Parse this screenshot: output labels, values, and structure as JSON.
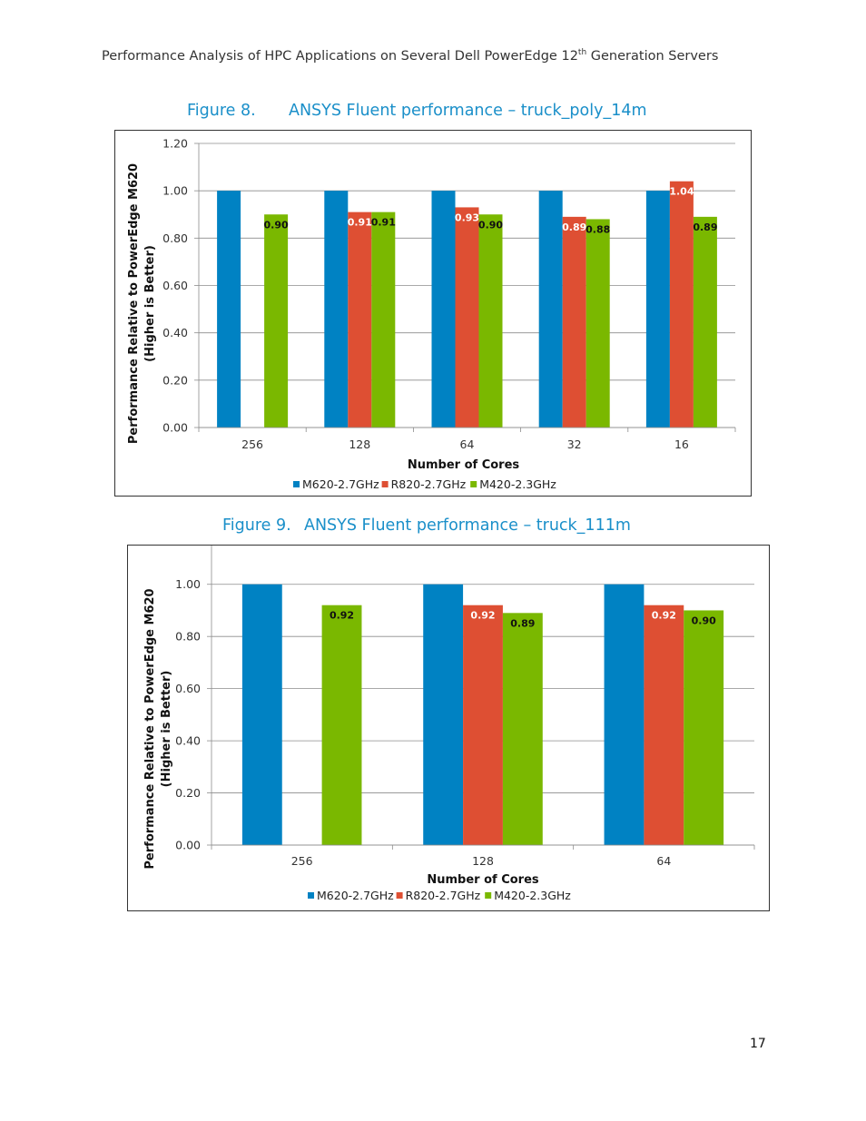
{
  "header": {
    "title_before": "Performance Analysis of HPC Applications on Several Dell PowerEdge 12",
    "title_sup": "th",
    "title_after": " Generation Servers"
  },
  "figure8": {
    "number": "Figure 8.",
    "title": "ANSYS Fluent performance – truck_poly_14m"
  },
  "figure9": {
    "number": "Figure 9.",
    "title": "ANSYS Fluent performance – truck_111m"
  },
  "page_number": "17",
  "colors": {
    "M620": "#0082c3",
    "R820": "#de4f33",
    "M420": "#7ab800",
    "caption": "#1a8fc9"
  },
  "chart_data": [
    {
      "type": "bar",
      "xlabel": "Number of Cores",
      "ylabel_line1": "Performance Relative to PowerEdge M620",
      "ylabel_line2": "(Higher is Better)",
      "categories": [
        "256",
        "128",
        "64",
        "32",
        "16"
      ],
      "ylim": [
        0,
        1.2
      ],
      "yticks": [
        "0.00",
        "0.20",
        "0.40",
        "0.60",
        "0.80",
        "1.00",
        "1.20"
      ],
      "grid": true,
      "legend_position": "bottom",
      "series": [
        {
          "name": "M620-2.7GHz",
          "color": "#0082c3",
          "values": [
            1.0,
            1.0,
            1.0,
            1.0,
            1.0
          ],
          "labels": [
            null,
            null,
            null,
            null,
            null
          ]
        },
        {
          "name": "R820-2.7GHz",
          "color": "#de4f33",
          "values": [
            null,
            0.91,
            0.93,
            0.89,
            1.04
          ],
          "labels": [
            null,
            "0.91",
            "0.93",
            "0.89",
            "1.04"
          ]
        },
        {
          "name": "M420-2.3GHz",
          "color": "#7ab800",
          "values": [
            0.9,
            0.91,
            0.9,
            0.88,
            0.89
          ],
          "labels": [
            "0.90",
            "0.91",
            "0.90",
            "0.88",
            "0.89"
          ]
        }
      ]
    },
    {
      "type": "bar",
      "xlabel": "Number of Cores",
      "ylabel_line1": "Performance Relative to PowerEdge M620",
      "ylabel_line2": "(Higher is Better)",
      "categories": [
        "256",
        "128",
        "64"
      ],
      "ylim": [
        0,
        1.1
      ],
      "yticks": [
        "0.00",
        "0.20",
        "0.40",
        "0.60",
        "0.80",
        "1.00"
      ],
      "grid": true,
      "legend_position": "bottom",
      "series": [
        {
          "name": "M620-2.7GHz",
          "color": "#0082c3",
          "values": [
            1.0,
            1.0,
            1.0
          ],
          "labels": [
            null,
            null,
            null
          ]
        },
        {
          "name": "R820-2.7GHz",
          "color": "#de4f33",
          "values": [
            null,
            0.92,
            0.92
          ],
          "labels": [
            null,
            "0.92",
            "0.92"
          ]
        },
        {
          "name": "M420-2.3GHz",
          "color": "#7ab800",
          "values": [
            0.92,
            0.89,
            0.9
          ],
          "labels": [
            "0.92",
            "0.89",
            "0.90"
          ]
        }
      ]
    }
  ]
}
